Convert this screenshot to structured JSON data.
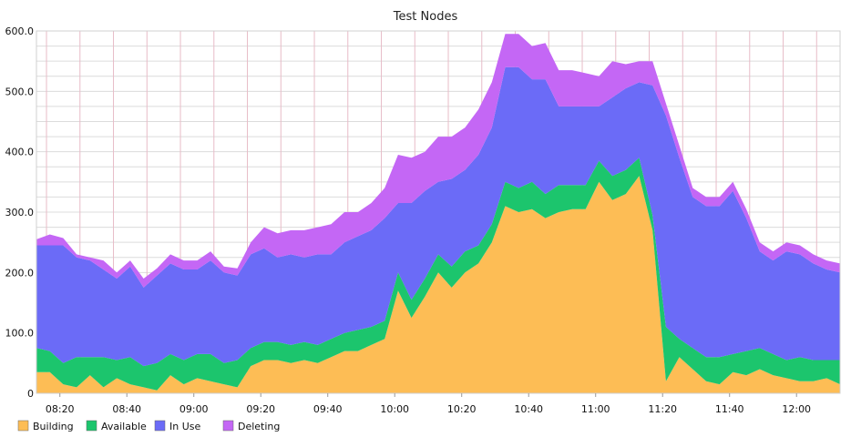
{
  "chart_data": {
    "type": "area",
    "stacked": true,
    "title": "Test Nodes",
    "xlabel": "",
    "ylabel": "",
    "ylim": [
      0,
      600
    ],
    "y_ticks": [
      "0",
      "100.0",
      "200.0",
      "300.0",
      "400.0",
      "500.0",
      "600.0"
    ],
    "x_range": [
      "08:13",
      "12:13"
    ],
    "x_ticks": [
      "08:20",
      "08:40",
      "09:00",
      "09:20",
      "09:40",
      "10:00",
      "10:20",
      "10:40",
      "11:00",
      "11:20",
      "11:40",
      "12:00"
    ],
    "grid": true,
    "legend_position": "bottom",
    "x": [
      "08:13",
      "08:17",
      "08:21",
      "08:25",
      "08:29",
      "08:33",
      "08:37",
      "08:41",
      "08:45",
      "08:49",
      "08:53",
      "08:57",
      "09:01",
      "09:05",
      "09:09",
      "09:13",
      "09:17",
      "09:21",
      "09:25",
      "09:29",
      "09:33",
      "09:37",
      "09:41",
      "09:45",
      "09:49",
      "09:53",
      "09:57",
      "10:01",
      "10:05",
      "10:09",
      "10:13",
      "10:17",
      "10:21",
      "10:25",
      "10:29",
      "10:33",
      "10:37",
      "10:41",
      "10:45",
      "10:49",
      "10:53",
      "10:57",
      "11:01",
      "11:05",
      "11:09",
      "11:13",
      "11:17",
      "11:21",
      "11:25",
      "11:29",
      "11:33",
      "11:37",
      "11:41",
      "11:45",
      "11:49",
      "11:53",
      "11:57",
      "12:01",
      "12:05",
      "12:09",
      "12:13"
    ],
    "series": [
      {
        "name": "Building",
        "color": "#fdbd55",
        "values": [
          35,
          35,
          15,
          10,
          30,
          10,
          25,
          15,
          10,
          5,
          30,
          15,
          25,
          20,
          15,
          10,
          45,
          55,
          55,
          50,
          55,
          50,
          60,
          70,
          70,
          80,
          90,
          170,
          125,
          160,
          200,
          175,
          200,
          215,
          250,
          310,
          300,
          305,
          290,
          300,
          305,
          305,
          350,
          320,
          330,
          360,
          270,
          20,
          60,
          40,
          20,
          15,
          35,
          30,
          40,
          30,
          25,
          20,
          20,
          25,
          15
        ]
      },
      {
        "name": "Available",
        "color": "#1cc56d",
        "values": [
          40,
          35,
          35,
          50,
          30,
          50,
          30,
          45,
          35,
          45,
          35,
          40,
          40,
          45,
          35,
          45,
          30,
          30,
          30,
          30,
          30,
          30,
          30,
          30,
          35,
          30,
          30,
          30,
          30,
          30,
          30,
          35,
          35,
          30,
          30,
          40,
          40,
          45,
          40,
          45,
          40,
          40,
          35,
          40,
          40,
          30,
          25,
          90,
          30,
          35,
          40,
          45,
          30,
          40,
          35,
          35,
          30,
          40,
          35,
          30,
          40
        ]
      },
      {
        "name": "In Use",
        "color": "#6b6bf7",
        "values": [
          170,
          175,
          195,
          165,
          160,
          145,
          135,
          150,
          130,
          145,
          150,
          150,
          140,
          155,
          150,
          140,
          155,
          155,
          140,
          150,
          140,
          150,
          140,
          150,
          155,
          160,
          170,
          115,
          160,
          145,
          120,
          145,
          135,
          150,
          160,
          190,
          200,
          170,
          190,
          130,
          130,
          130,
          90,
          130,
          135,
          125,
          215,
          350,
          300,
          250,
          250,
          250,
          270,
          220,
          160,
          155,
          180,
          170,
          160,
          150,
          145
        ]
      },
      {
        "name": "Deleting",
        "color": "#c467f5",
        "values": [
          10,
          18,
          12,
          5,
          5,
          15,
          10,
          10,
          15,
          12,
          15,
          15,
          15,
          15,
          10,
          12,
          20,
          35,
          40,
          40,
          45,
          45,
          50,
          50,
          40,
          45,
          50,
          80,
          75,
          65,
          75,
          70,
          70,
          75,
          75,
          55,
          55,
          55,
          60,
          60,
          60,
          55,
          50,
          60,
          40,
          35,
          40,
          20,
          20,
          15,
          15,
          15,
          15,
          15,
          15,
          15,
          15,
          15,
          15,
          15,
          15
        ]
      }
    ]
  }
}
